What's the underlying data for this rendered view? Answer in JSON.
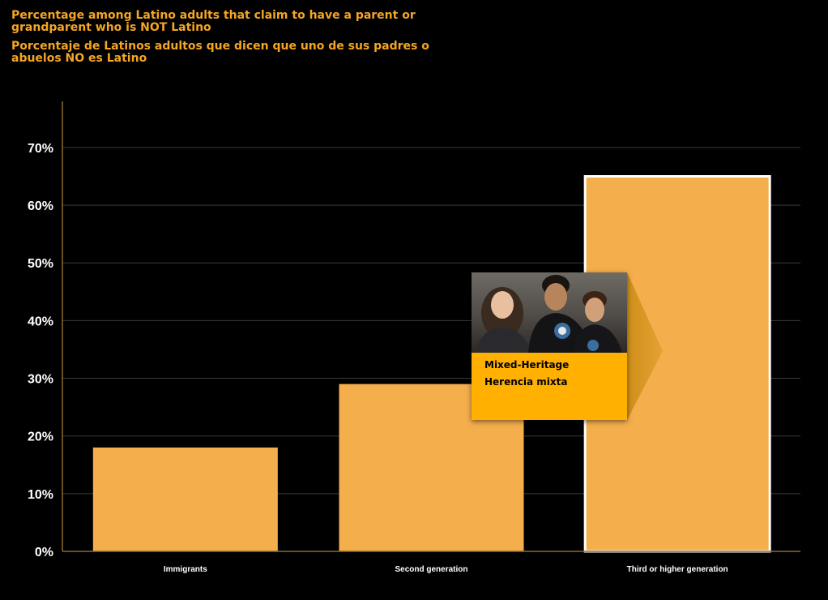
{
  "header": {
    "title_en_line1": "Percentage among Latino adults that claim to have a parent or",
    "title_en_line2": "grandparent who is NOT Latino",
    "title_es_line1": "Porcentaje de Latinos adultos que dicen que uno de sus padres o",
    "title_es_line2": "abuelos NO es Latino"
  },
  "callout": {
    "line1": "Mixed-Heritage",
    "line2": "Herencia mixta",
    "photo_icon": "family-photo-icon"
  },
  "colors": {
    "background": "#000000",
    "bar": "#f5ae4c",
    "accent": "#f5a623",
    "callout_box": "#ffb000",
    "grid": "#3a3a3a",
    "axis": "#8a6a2a",
    "highlight_border": "#ffffff"
  },
  "chart_data": {
    "type": "bar",
    "categories": [
      "Immigrants",
      "Second generation",
      "Third or higher generation"
    ],
    "values": [
      18,
      29,
      65
    ],
    "highlighted_index": 2,
    "ylim": [
      0,
      78
    ],
    "yticks": [
      0,
      10,
      20,
      30,
      40,
      50,
      60,
      70
    ],
    "ytick_labels": [
      "0%",
      "10%",
      "20%",
      "30%",
      "40%",
      "50%",
      "60%",
      "70%"
    ],
    "grid": true,
    "xlabel": "",
    "ylabel": ""
  }
}
